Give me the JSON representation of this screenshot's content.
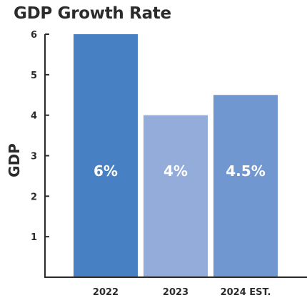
{
  "chart_data": {
    "type": "bar",
    "title": "GDP Growth Rate",
    "ylabel": "GDP",
    "xlabel": "",
    "categories": [
      "2022",
      "2023",
      "2024 EST."
    ],
    "values": [
      6,
      4,
      4.5
    ],
    "data_labels": [
      "6%",
      "4%",
      "4.5%"
    ],
    "bar_colors": [
      "#4781c4",
      "#93acd9",
      "#7097d0"
    ],
    "ylim": [
      0,
      6
    ],
    "yticks": [
      1,
      2,
      3,
      4,
      5,
      6
    ],
    "grid": false,
    "legend": "none"
  }
}
